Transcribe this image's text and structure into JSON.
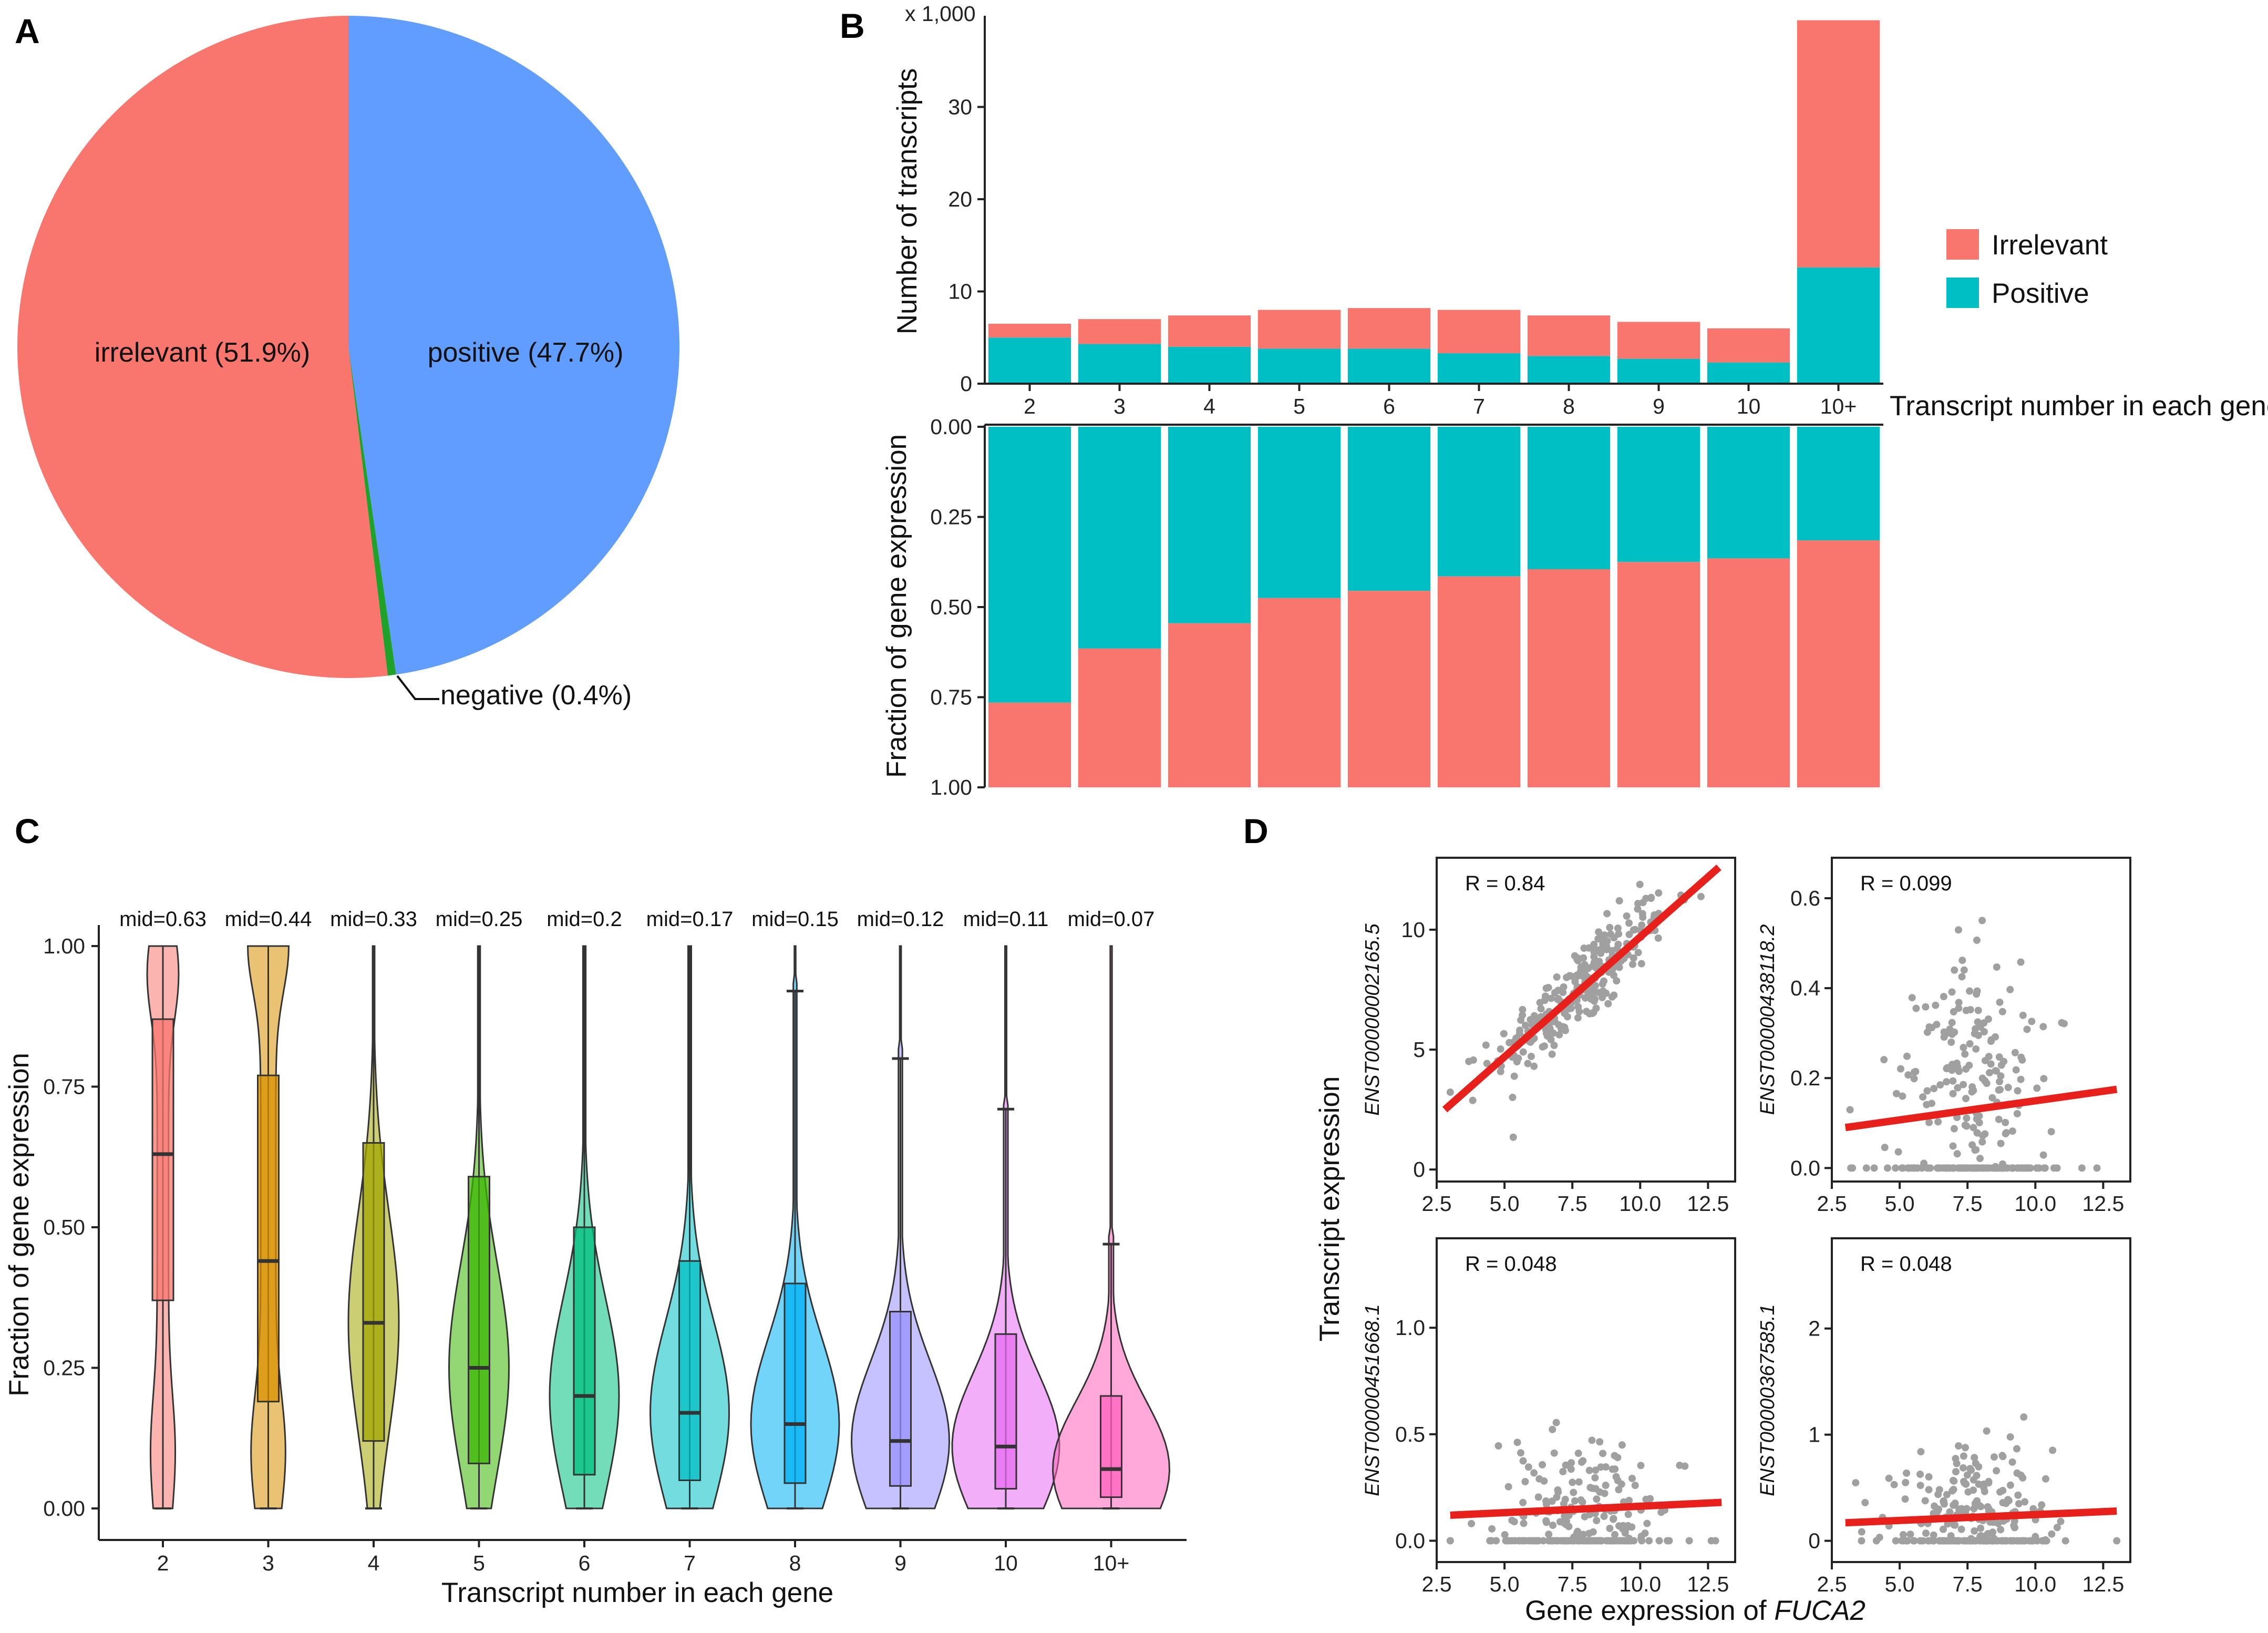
{
  "panels": {
    "a": "A",
    "b": "B",
    "c": "C",
    "d": "D"
  },
  "colors": {
    "irrelevant": "#f8766d",
    "positive": "#00bfc4",
    "pie_positive": "#619cff",
    "negative": "#1fa12a",
    "points": "#a0a0a0",
    "fit": "#e8201b"
  },
  "chart_data": [
    {
      "id": "A",
      "type": "pie",
      "slices": [
        {
          "name": "irrelevant",
          "value": 51.9,
          "label": "irrelevant (51.9%)"
        },
        {
          "name": "positive",
          "value": 47.7,
          "label": "positive (47.7%)"
        },
        {
          "name": "negative",
          "value": 0.4,
          "label": "negative (0.4%)"
        }
      ]
    },
    {
      "id": "B-top",
      "type": "bar",
      "stacked": true,
      "categories": [
        "2",
        "3",
        "4",
        "5",
        "6",
        "7",
        "8",
        "9",
        "10",
        "10+"
      ],
      "series": [
        {
          "name": "Positive",
          "values": [
            5.0,
            4.3,
            4.0,
            3.8,
            3.8,
            3.3,
            3.0,
            2.7,
            2.3,
            12.6
          ]
        },
        {
          "name": "Irrelevant",
          "values": [
            1.5,
            2.7,
            3.4,
            4.2,
            4.4,
            4.7,
            4.4,
            4.0,
            3.7,
            26.8
          ]
        }
      ],
      "multiplier_label": "x 1,000",
      "ylabel": "Number of transcripts",
      "xlabel": "Transcript number in each gene",
      "ylim": [
        0,
        40
      ],
      "yticks": [
        0,
        10,
        20,
        30
      ],
      "legend": [
        "Irrelevant",
        "Positive"
      ]
    },
    {
      "id": "B-bottom",
      "type": "bar",
      "stacked": true,
      "orientation": "reversed-y",
      "categories": [
        "2",
        "3",
        "4",
        "5",
        "6",
        "7",
        "8",
        "9",
        "10",
        "10+"
      ],
      "series": [
        {
          "name": "Positive",
          "values": [
            0.765,
            0.615,
            0.545,
            0.475,
            0.455,
            0.415,
            0.395,
            0.375,
            0.365,
            0.315
          ]
        },
        {
          "name": "Irrelevant",
          "values": [
            0.235,
            0.385,
            0.455,
            0.525,
            0.545,
            0.585,
            0.605,
            0.625,
            0.635,
            0.685
          ]
        }
      ],
      "ylabel": "Fraction of gene expression",
      "ylim": [
        0,
        1
      ],
      "yticks": [
        "0.00",
        "0.25",
        "0.50",
        "0.75",
        "1.00"
      ]
    },
    {
      "id": "C",
      "type": "violin-box",
      "categories": [
        "2",
        "3",
        "4",
        "5",
        "6",
        "7",
        "8",
        "9",
        "10",
        "10+"
      ],
      "mid_labels": [
        "mid=0.63",
        "mid=0.44",
        "mid=0.33",
        "mid=0.25",
        "mid=0.2",
        "mid=0.17",
        "mid=0.15",
        "mid=0.12",
        "mid=0.11",
        "mid=0.07"
      ],
      "median": [
        0.63,
        0.44,
        0.33,
        0.25,
        0.2,
        0.17,
        0.15,
        0.12,
        0.11,
        0.07
      ],
      "q1": [
        0.37,
        0.19,
        0.12,
        0.08,
        0.06,
        0.05,
        0.045,
        0.04,
        0.035,
        0.02
      ],
      "q3": [
        0.87,
        0.77,
        0.65,
        0.59,
        0.5,
        0.44,
        0.4,
        0.35,
        0.31,
        0.2
      ],
      "whisker_high": [
        1.0,
        1.0,
        1.0,
        1.0,
        1.0,
        1.0,
        0.92,
        0.8,
        0.71,
        0.47
      ],
      "colors": [
        "#f8766d",
        "#d89000",
        "#a3a500",
        "#39b600",
        "#00bf7d",
        "#00bfc4",
        "#00b0f6",
        "#9590ff",
        "#e76bf3",
        "#ff62bc"
      ],
      "xlabel": "Transcript number in each gene",
      "ylabel": "Fraction of gene expression",
      "ylim": [
        0,
        1
      ],
      "yticks": [
        "0.00",
        "0.25",
        "0.50",
        "0.75",
        "1.00"
      ]
    },
    {
      "id": "D",
      "type": "scatter",
      "xlabel_prefix": "Gene expression of ",
      "xlabel_gene": "FUCA2",
      "ylabel": "Transcript expression",
      "xticks": [
        "2.5",
        "5.0",
        "7.5",
        "10.0",
        "12.5"
      ],
      "xlim": [
        2.5,
        13.5
      ],
      "subplots": [
        {
          "ylabel": "ENST00000002165.5",
          "r_label": "R = 0.84",
          "ylim": [
            -0.5,
            13
          ],
          "yticks": [
            0,
            5,
            10
          ],
          "fit": [
            [
              2.8,
              2.5
            ],
            [
              12.9,
              12.6
            ]
          ]
        },
        {
          "ylabel": "ENST00000438118.2",
          "r_label": "R = 0.099",
          "ylim": [
            -0.03,
            0.69
          ],
          "yticks": [
            "0.0",
            "0.2",
            "0.4",
            "0.6"
          ],
          "fit": [
            [
              3.0,
              0.09
            ],
            [
              13.0,
              0.175
            ]
          ]
        },
        {
          "ylabel": "ENST00000451668.1",
          "r_label": "R = 0.048",
          "ylim": [
            -0.1,
            1.42
          ],
          "yticks": [
            "0.0",
            "0.5",
            "1.0"
          ],
          "fit": [
            [
              3.0,
              0.12
            ],
            [
              13.0,
              0.18
            ]
          ]
        },
        {
          "ylabel": "ENST00000367585.1",
          "r_label": "R = 0.048",
          "ylim": [
            -0.2,
            2.85
          ],
          "yticks": [
            0,
            1,
            2
          ],
          "fit": [
            [
              3.0,
              0.17
            ],
            [
              13.0,
              0.28
            ]
          ]
        }
      ]
    }
  ]
}
